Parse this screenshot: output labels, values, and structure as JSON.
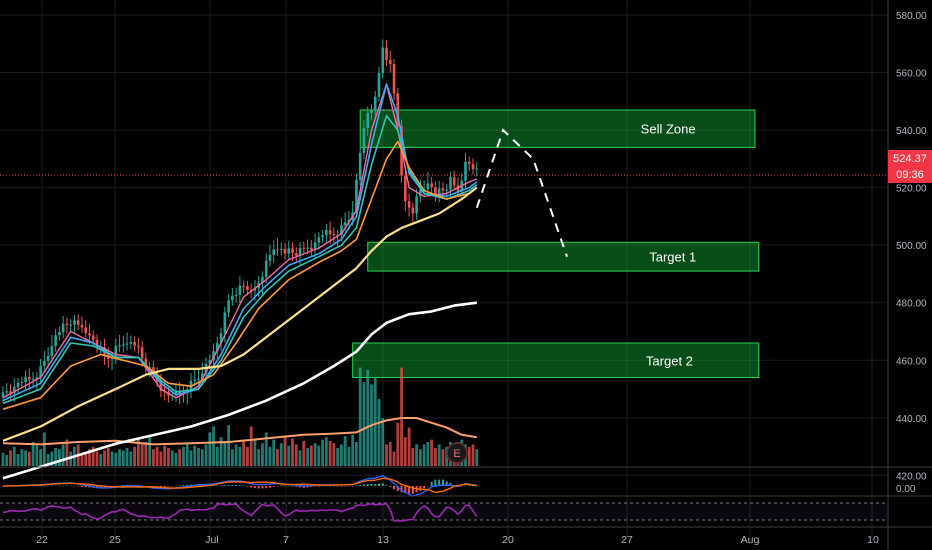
{
  "chart_data": {
    "type": "candlestick",
    "price_axis": {
      "ticks": [
        "580.00",
        "560.00",
        "540.00",
        "520.00",
        "500.00",
        "480.00",
        "460.00",
        "440.00",
        "420.00"
      ],
      "tick_values": [
        580,
        560,
        540,
        520,
        500,
        480,
        460,
        440,
        420
      ],
      "range": [
        402,
        583
      ]
    },
    "indicator_axis": {
      "tick": "0.00"
    },
    "time_axis": {
      "labels": [
        "22",
        "25",
        "Jul",
        "7",
        "13",
        "20",
        "27",
        "Aug",
        "10"
      ]
    },
    "last_price": {
      "value": 524.37,
      "label": "524.37",
      "countdown": "09:36"
    },
    "price_bands": [
      0.5,
      0.42,
      -0.38,
      0.6,
      1.1,
      0.9,
      1.4,
      0.2,
      -0.3,
      -0.6,
      1.2,
      0.8,
      0.3,
      0.9,
      1.7,
      1.3,
      2.0,
      0.6,
      -0.4,
      1.0
    ],
    "close_series": [
      {
        "i": 0,
        "v": 448
      },
      {
        "i": 5,
        "v": 451
      },
      {
        "i": 10,
        "v": 456
      },
      {
        "i": 14,
        "v": 466
      },
      {
        "i": 18,
        "v": 473
      },
      {
        "i": 22,
        "v": 470
      },
      {
        "i": 25,
        "v": 463
      },
      {
        "i": 28,
        "v": 461
      },
      {
        "i": 32,
        "v": 465
      },
      {
        "i": 35,
        "v": 463
      },
      {
        "i": 38,
        "v": 458
      },
      {
        "i": 41,
        "v": 452
      },
      {
        "i": 44,
        "v": 446
      },
      {
        "i": 47,
        "v": 448
      },
      {
        "i": 50,
        "v": 451
      },
      {
        "i": 53,
        "v": 454
      },
      {
        "i": 56,
        "v": 460
      },
      {
        "i": 58,
        "v": 470
      },
      {
        "i": 60,
        "v": 480
      },
      {
        "i": 63,
        "v": 485
      },
      {
        "i": 66,
        "v": 482
      },
      {
        "i": 69,
        "v": 490
      },
      {
        "i": 72,
        "v": 498
      },
      {
        "i": 75,
        "v": 495
      },
      {
        "i": 78,
        "v": 497
      },
      {
        "i": 82,
        "v": 499
      },
      {
        "i": 86,
        "v": 503
      },
      {
        "i": 90,
        "v": 505
      },
      {
        "i": 93,
        "v": 510
      },
      {
        "i": 95,
        "v": 530
      },
      {
        "i": 97,
        "v": 545
      },
      {
        "i": 99,
        "v": 550
      },
      {
        "i": 101,
        "v": 568
      },
      {
        "i": 103,
        "v": 562
      },
      {
        "i": 105,
        "v": 540
      },
      {
        "i": 106,
        "v": 522
      },
      {
        "i": 107,
        "v": 515
      },
      {
        "i": 109,
        "v": 512
      },
      {
        "i": 111,
        "v": 518
      },
      {
        "i": 113,
        "v": 520
      },
      {
        "i": 115,
        "v": 515
      },
      {
        "i": 117,
        "v": 518
      },
      {
        "i": 119,
        "v": 522
      },
      {
        "i": 121,
        "v": 518
      },
      {
        "i": 123,
        "v": 528
      },
      {
        "i": 125,
        "v": 525
      },
      {
        "i": 126,
        "v": 524.4
      }
    ],
    "moving_averages": [
      {
        "name": "",
        "color": "#f06ba6",
        "width": 1.4,
        "points": [
          [
            0,
            447
          ],
          [
            10,
            454
          ],
          [
            18,
            470
          ],
          [
            24,
            466
          ],
          [
            30,
            462
          ],
          [
            36,
            461
          ],
          [
            42,
            450
          ],
          [
            46,
            447
          ],
          [
            52,
            451
          ],
          [
            58,
            466
          ],
          [
            64,
            482
          ],
          [
            70,
            488
          ],
          [
            76,
            495
          ],
          [
            84,
            499
          ],
          [
            90,
            504
          ],
          [
            94,
            512
          ],
          [
            98,
            540
          ],
          [
            102,
            556
          ],
          [
            105,
            540
          ],
          [
            108,
            520
          ],
          [
            112,
            517
          ],
          [
            118,
            518
          ],
          [
            124,
            522
          ],
          [
            126,
            523
          ]
        ]
      },
      {
        "name": "",
        "color": "#3fa9f5",
        "width": 1.6,
        "points": [
          [
            0,
            446
          ],
          [
            10,
            452
          ],
          [
            18,
            468
          ],
          [
            24,
            466
          ],
          [
            30,
            461
          ],
          [
            36,
            461
          ],
          [
            42,
            452
          ],
          [
            46,
            448
          ],
          [
            52,
            450
          ],
          [
            58,
            462
          ],
          [
            64,
            478
          ],
          [
            70,
            486
          ],
          [
            76,
            493
          ],
          [
            84,
            497
          ],
          [
            90,
            502
          ],
          [
            94,
            510
          ],
          [
            98,
            535
          ],
          [
            102,
            556
          ],
          [
            105,
            545
          ],
          [
            108,
            525
          ],
          [
            112,
            518
          ],
          [
            118,
            517
          ],
          [
            124,
            520
          ],
          [
            126,
            522
          ]
        ]
      },
      {
        "name": "",
        "color": "#2ec4b6",
        "width": 1.6,
        "points": [
          [
            0,
            445
          ],
          [
            10,
            450
          ],
          [
            18,
            466
          ],
          [
            24,
            465
          ],
          [
            30,
            461
          ],
          [
            36,
            461
          ],
          [
            42,
            453
          ],
          [
            46,
            449
          ],
          [
            52,
            450
          ],
          [
            58,
            460
          ],
          [
            64,
            475
          ],
          [
            70,
            484
          ],
          [
            76,
            491
          ],
          [
            84,
            496
          ],
          [
            90,
            500
          ],
          [
            94,
            506
          ],
          [
            98,
            528
          ],
          [
            102,
            545
          ],
          [
            105,
            540
          ],
          [
            108,
            526
          ],
          [
            112,
            518
          ],
          [
            118,
            516
          ],
          [
            124,
            519
          ],
          [
            126,
            521
          ]
        ]
      },
      {
        "name": "",
        "color": "#ff9a3c",
        "width": 1.6,
        "points": [
          [
            0,
            443
          ],
          [
            10,
            447
          ],
          [
            18,
            458
          ],
          [
            26,
            462
          ],
          [
            32,
            460
          ],
          [
            38,
            458
          ],
          [
            44,
            452
          ],
          [
            50,
            451
          ],
          [
            56,
            455
          ],
          [
            62,
            466
          ],
          [
            68,
            478
          ],
          [
            76,
            488
          ],
          [
            84,
            494
          ],
          [
            90,
            498
          ],
          [
            94,
            502
          ],
          [
            98,
            516
          ],
          [
            102,
            530
          ],
          [
            105,
            536
          ],
          [
            108,
            527
          ],
          [
            112,
            519
          ],
          [
            118,
            516
          ],
          [
            124,
            518
          ],
          [
            126,
            520
          ]
        ]
      },
      {
        "name": "",
        "color": "#ffe08a",
        "width": 2.2,
        "points": [
          [
            0,
            432
          ],
          [
            10,
            437
          ],
          [
            20,
            444
          ],
          [
            30,
            450
          ],
          [
            38,
            455
          ],
          [
            44,
            457
          ],
          [
            52,
            457
          ],
          [
            58,
            458
          ],
          [
            64,
            462
          ],
          [
            72,
            470
          ],
          [
            80,
            478
          ],
          [
            88,
            486
          ],
          [
            94,
            492
          ],
          [
            98,
            498
          ],
          [
            102,
            503
          ],
          [
            106,
            506
          ],
          [
            110,
            508
          ],
          [
            116,
            511
          ],
          [
            122,
            516
          ],
          [
            126,
            520
          ]
        ]
      },
      {
        "name": "",
        "color": "#ffffff",
        "width": 2.6,
        "points": [
          [
            0,
            419
          ],
          [
            10,
            423
          ],
          [
            20,
            427
          ],
          [
            30,
            431
          ],
          [
            40,
            434
          ],
          [
            50,
            437
          ],
          [
            60,
            441
          ],
          [
            70,
            446
          ],
          [
            80,
            452
          ],
          [
            88,
            458
          ],
          [
            94,
            463
          ],
          [
            98,
            469
          ],
          [
            102,
            473
          ],
          [
            108,
            476
          ],
          [
            114,
            477
          ],
          [
            120,
            479
          ],
          [
            126,
            480
          ]
        ]
      }
    ],
    "zones": [
      {
        "label": "Sell Zone",
        "low": 534,
        "high": 547,
        "start_index": 95,
        "end_index": 200
      },
      {
        "label": "Target 1",
        "low": 491,
        "high": 501,
        "start_index": 97,
        "end_index": 201
      },
      {
        "label": "Target 2",
        "low": 454,
        "high": 466,
        "start_index": 93,
        "end_index": 201
      }
    ],
    "projection": [
      [
        126,
        513
      ],
      [
        133,
        540
      ],
      [
        141,
        530
      ],
      [
        150,
        496
      ]
    ],
    "volume": {
      "values": [
        11,
        9,
        13,
        16,
        10,
        14,
        13,
        12,
        20,
        17,
        14,
        28,
        10,
        12,
        15,
        14,
        18,
        22,
        12,
        16,
        18,
        9,
        10,
        14,
        16,
        12,
        10,
        13,
        15,
        12,
        11,
        14,
        13,
        15,
        12,
        16,
        22,
        18,
        20,
        24,
        14,
        16,
        12,
        17,
        15,
        13,
        11,
        14,
        16,
        19,
        13,
        17,
        15,
        14,
        18,
        28,
        33,
        16,
        24,
        20,
        34,
        14,
        18,
        16,
        22,
        16,
        33,
        22,
        14,
        19,
        28,
        16,
        22,
        14,
        19,
        25,
        17,
        23,
        18,
        13,
        21,
        15,
        17,
        19,
        17,
        22,
        24,
        21,
        19,
        15,
        18,
        25,
        16,
        26,
        20,
        82,
        70,
        80,
        68,
        74,
        56,
        40,
        18,
        20,
        12,
        36,
        82,
        24,
        32,
        15,
        18,
        14,
        18,
        20,
        22,
        15,
        18,
        14,
        16,
        20,
        18,
        20,
        22,
        18,
        16,
        18,
        14
      ],
      "avg": [
        [
          0,
          19
        ],
        [
          10,
          18
        ],
        [
          20,
          20
        ],
        [
          30,
          21
        ],
        [
          40,
          18
        ],
        [
          50,
          19
        ],
        [
          60,
          20
        ],
        [
          70,
          23
        ],
        [
          80,
          26
        ],
        [
          88,
          27
        ],
        [
          94,
          28
        ],
        [
          98,
          34
        ],
        [
          102,
          38
        ],
        [
          106,
          40
        ],
        [
          110,
          40
        ],
        [
          114,
          36
        ],
        [
          118,
          32
        ],
        [
          122,
          26
        ],
        [
          126,
          24
        ]
      ]
    },
    "earnings_marker": {
      "label": "E"
    }
  }
}
